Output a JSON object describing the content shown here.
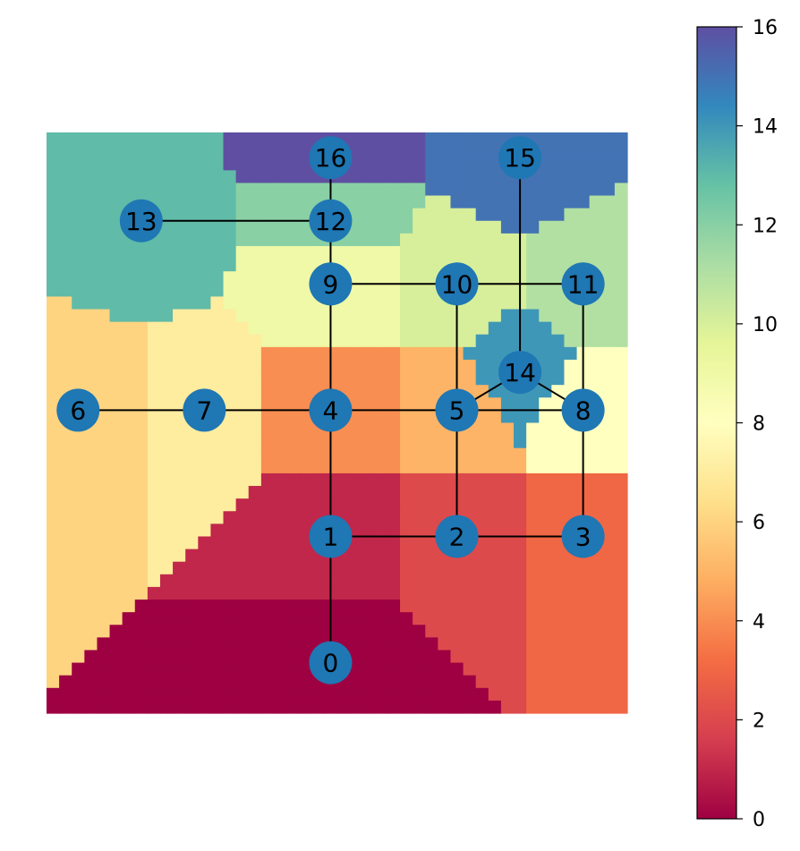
{
  "chart_data": {
    "type": "heatmap",
    "description_kind": "graph-voronoi-map",
    "colormap": "Spectral",
    "colormap_stops": [
      "#9e0142",
      "#d53e4f",
      "#f46d43",
      "#fdae61",
      "#fee08b",
      "#ffffbf",
      "#e6f598",
      "#abdda4",
      "#66c2a5",
      "#3288bd",
      "#5e4fa2"
    ],
    "colorbar": {
      "min": 0,
      "max": 16,
      "ticks": [
        "0",
        "2",
        "4",
        "6",
        "8",
        "10",
        "12",
        "14",
        "16"
      ]
    },
    "grid": {
      "cols": 46,
      "rows": 46,
      "x_range": [
        -1.25,
        3.35
      ],
      "y_range": [
        -1.4,
        3.2
      ]
    },
    "node_color": "#1f77b4",
    "edge_color": "#000000",
    "nodes": [
      {
        "id": 0,
        "label": "0",
        "x": 1.0,
        "y": -1.0
      },
      {
        "id": 1,
        "label": "1",
        "x": 1.0,
        "y": 0.0
      },
      {
        "id": 2,
        "label": "2",
        "x": 2.0,
        "y": 0.0
      },
      {
        "id": 3,
        "label": "3",
        "x": 3.0,
        "y": 0.0
      },
      {
        "id": 4,
        "label": "4",
        "x": 1.0,
        "y": 1.0
      },
      {
        "id": 5,
        "label": "5",
        "x": 2.0,
        "y": 1.0
      },
      {
        "id": 6,
        "label": "6",
        "x": -1.0,
        "y": 1.0
      },
      {
        "id": 7,
        "label": "7",
        "x": 0.0,
        "y": 1.0
      },
      {
        "id": 8,
        "label": "8",
        "x": 3.0,
        "y": 1.0
      },
      {
        "id": 9,
        "label": "9",
        "x": 1.0,
        "y": 2.0
      },
      {
        "id": 10,
        "label": "10",
        "x": 2.0,
        "y": 2.0
      },
      {
        "id": 11,
        "label": "11",
        "x": 3.0,
        "y": 2.0
      },
      {
        "id": 12,
        "label": "12",
        "x": 1.0,
        "y": 2.5
      },
      {
        "id": 13,
        "label": "13",
        "x": -0.5,
        "y": 2.5
      },
      {
        "id": 14,
        "label": "14",
        "x": 2.5,
        "y": 1.3
      },
      {
        "id": 15,
        "label": "15",
        "x": 2.5,
        "y": 3.0
      },
      {
        "id": 16,
        "label": "16",
        "x": 1.0,
        "y": 3.0
      }
    ],
    "edges": [
      [
        0,
        1
      ],
      [
        1,
        2
      ],
      [
        2,
        3
      ],
      [
        1,
        4
      ],
      [
        2,
        5
      ],
      [
        3,
        8
      ],
      [
        4,
        5
      ],
      [
        5,
        8
      ],
      [
        6,
        7
      ],
      [
        7,
        4
      ],
      [
        4,
        9
      ],
      [
        5,
        10
      ],
      [
        8,
        11
      ],
      [
        9,
        10
      ],
      [
        10,
        11
      ],
      [
        9,
        12
      ],
      [
        12,
        13
      ],
      [
        12,
        16
      ],
      [
        5,
        14
      ],
      [
        14,
        8
      ],
      [
        14,
        15
      ]
    ]
  }
}
